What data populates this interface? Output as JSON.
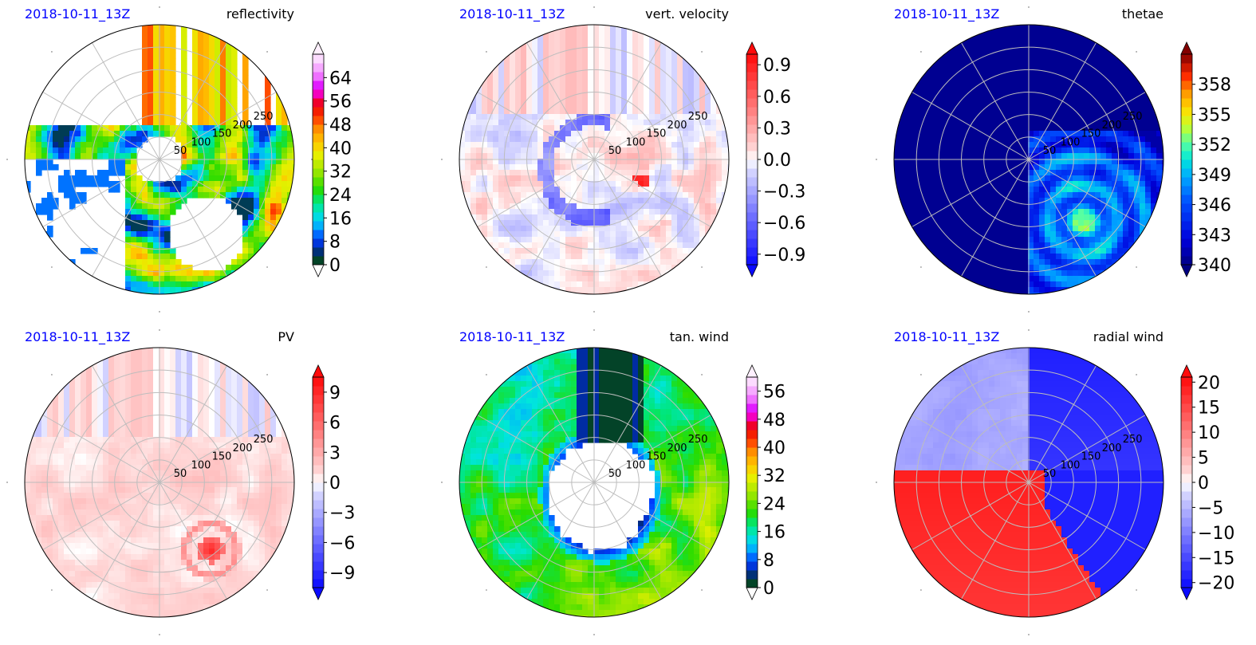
{
  "figure": {
    "panels": [
      {
        "date": "2018-10-11_13Z",
        "title": "reflectivity"
      },
      {
        "date": "2018-10-11_13Z",
        "title": "vert. velocity"
      },
      {
        "date": "2018-10-11_13Z",
        "title": "thetae"
      },
      {
        "date": "2018-10-11_13Z",
        "title": "PV"
      },
      {
        "date": "2018-10-11_13Z",
        "title": "tan. wind"
      },
      {
        "date": "2018-10-11_13Z",
        "title": "radial wind"
      }
    ]
  },
  "colors": {
    "date_label": "#0000ff",
    "axis_line": "#000000",
    "grid": "#bdbdbd",
    "missing": "#ffffff"
  },
  "chart_data": [
    {
      "type": "heatmap",
      "title": "reflectivity",
      "annotation": "2018-10-11_13Z",
      "projection": "polar",
      "radial_ticks": [
        50,
        100,
        150,
        200,
        250
      ],
      "radial_tick_labels": [
        "50",
        "100",
        "150",
        "200",
        "250"
      ],
      "colorbar": {
        "ticks": [
          0,
          8,
          16,
          24,
          32,
          40,
          48,
          56,
          64
        ],
        "tick_labels": [
          "0",
          "8",
          "16",
          "24",
          "32",
          "40",
          "48",
          "56",
          "64"
        ],
        "range": [
          0,
          72
        ],
        "extend": "both",
        "colormap": "reflectivity"
      }
    },
    {
      "type": "heatmap",
      "title": "vert. velocity",
      "annotation": "2018-10-11_13Z",
      "projection": "polar",
      "radial_ticks": [
        50,
        100,
        150,
        200,
        250
      ],
      "radial_tick_labels": [
        "50",
        "100",
        "150",
        "200",
        "250"
      ],
      "colorbar": {
        "ticks": [
          -0.9,
          -0.6,
          -0.3,
          0.0,
          0.3,
          0.6,
          0.9
        ],
        "tick_labels": [
          "−0.9",
          "−0.6",
          "−0.3",
          "0.0",
          "0.3",
          "0.6",
          "0.9"
        ],
        "range": [
          -1.0,
          1.0
        ],
        "extend": "both",
        "colormap": "blue-white-red"
      }
    },
    {
      "type": "heatmap",
      "title": "thetae",
      "annotation": "2018-10-11_13Z",
      "projection": "polar",
      "radial_ticks": [
        50,
        100,
        150,
        200,
        250
      ],
      "radial_tick_labels": [
        "50",
        "100",
        "150",
        "200",
        "250"
      ],
      "colorbar": {
        "ticks": [
          340,
          343,
          346,
          349,
          352,
          355,
          358
        ],
        "tick_labels": [
          "340",
          "343",
          "346",
          "349",
          "352",
          "355",
          "358"
        ],
        "range": [
          340,
          361
        ],
        "extend": "both",
        "colormap": "jet"
      }
    },
    {
      "type": "heatmap",
      "title": "PV",
      "annotation": "2018-10-11_13Z",
      "projection": "polar",
      "radial_ticks": [
        50,
        100,
        150,
        200,
        250
      ],
      "radial_tick_labels": [
        "50",
        "100",
        "150",
        "200",
        "250"
      ],
      "colorbar": {
        "ticks": [
          -9,
          -6,
          -3,
          0,
          3,
          6,
          9
        ],
        "tick_labels": [
          "−9",
          "−6",
          "−3",
          "0",
          "3",
          "6",
          "9"
        ],
        "range": [
          -10.5,
          10.5
        ],
        "extend": "both",
        "colormap": "blue-white-red"
      }
    },
    {
      "type": "heatmap",
      "title": "tan. wind",
      "annotation": "2018-10-11_13Z",
      "projection": "polar",
      "radial_ticks": [
        50,
        100,
        150,
        200,
        250
      ],
      "radial_tick_labels": [
        "50",
        "100",
        "150",
        "200",
        "250"
      ],
      "colorbar": {
        "ticks": [
          0,
          8,
          16,
          24,
          32,
          40,
          48,
          56
        ],
        "tick_labels": [
          "0",
          "8",
          "16",
          "24",
          "32",
          "40",
          "48",
          "56"
        ],
        "range": [
          0,
          60
        ],
        "extend": "both",
        "colormap": "reflectivity"
      }
    },
    {
      "type": "heatmap",
      "title": "radial wind",
      "annotation": "2018-10-11_13Z",
      "projection": "polar",
      "radial_ticks": [
        50,
        100,
        150,
        200,
        250
      ],
      "radial_tick_labels": [
        "50",
        "100",
        "150",
        "200",
        "250"
      ],
      "colorbar": {
        "ticks": [
          -20,
          -15,
          -10,
          -5,
          0,
          5,
          10,
          15,
          20
        ],
        "tick_labels": [
          "−20",
          "−15",
          "−10",
          "−5",
          "0",
          "5",
          "10",
          "15",
          "20"
        ],
        "range": [
          -21,
          21
        ],
        "extend": "both",
        "colormap": "blue-white-red"
      }
    }
  ]
}
